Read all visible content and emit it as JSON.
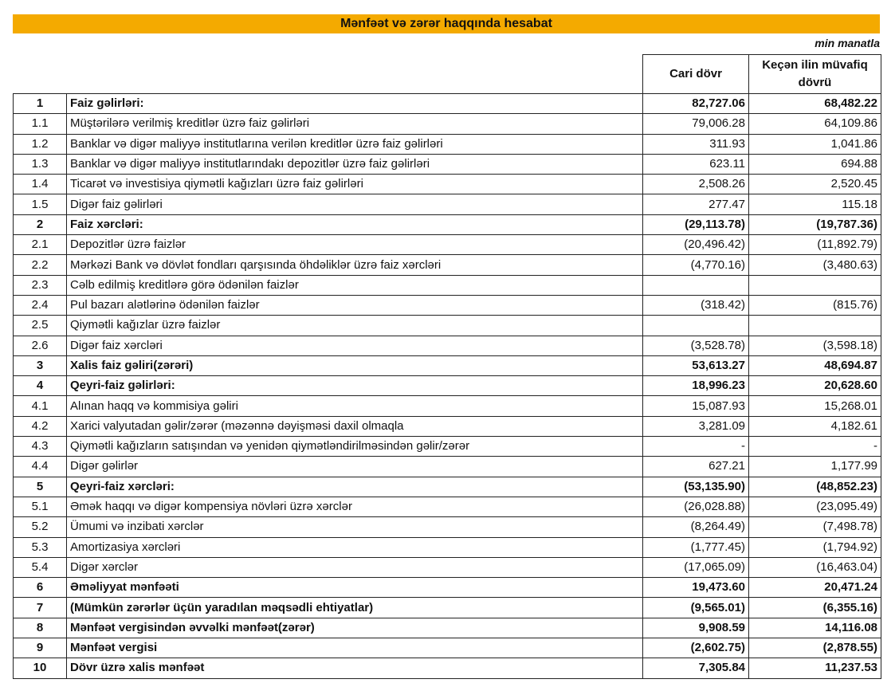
{
  "header": {
    "title": "Mənfəət və zərər haqqında hesabat",
    "unit": "min manatla"
  },
  "table": {
    "columns": [
      "Cari dövr",
      "Keçən ilin müvafiq dövrü"
    ],
    "rows": [
      {
        "num": "1",
        "label": "Faiz gəlirləri:",
        "current": "82,727.06",
        "previous": "68,482.22",
        "bold": true
      },
      {
        "num": "1.1",
        "label": "Müştərilərə verilmiş kreditlər üzrə faiz gəlirləri",
        "current": "79,006.28",
        "previous": "64,109.86",
        "bold": false
      },
      {
        "num": "1.2",
        "label": "Banklar və digər maliyyə institutlarına verilən kreditlər üzrə faiz gəlirləri",
        "current": "311.93",
        "previous": "1,041.86",
        "bold": false
      },
      {
        "num": "1.3",
        "label": "Banklar və digər maliyyə institutlarındakı depozitlər üzrə faiz gəlirləri",
        "current": "623.11",
        "previous": "694.88",
        "bold": false
      },
      {
        "num": "1.4",
        "label": "Ticarət və investisiya qiymətli kağızları üzrə faiz gəlirləri",
        "current": "2,508.26",
        "previous": "2,520.45",
        "bold": false
      },
      {
        "num": "1.5",
        "label": "Digər faiz gəlirləri",
        "current": "277.47",
        "previous": "115.18",
        "bold": false
      },
      {
        "num": "2",
        "label": "Faiz xərcləri:",
        "current": "(29,113.78)",
        "previous": "(19,787.36)",
        "bold": true
      },
      {
        "num": "2.1",
        "label": "Depozitlər üzrə faizlər",
        "current": "(20,496.42)",
        "previous": "(11,892.79)",
        "bold": false
      },
      {
        "num": "2.2",
        "label": "Mərkəzi Bank və dövlət fondları qarşısında öhdəliklər üzrə faiz xərcləri",
        "current": "(4,770.16)",
        "previous": "(3,480.63)",
        "bold": false
      },
      {
        "num": "2.3",
        "label": "Cəlb edilmiş kreditlərə görə ödənilən faizlər",
        "current": null,
        "previous": null,
        "bold": false
      },
      {
        "num": "2.4",
        "label": "Pul bazarı alətlərinə ödənilən faizlər",
        "current": "(318.42)",
        "previous": "(815.76)",
        "bold": false
      },
      {
        "num": "2.5",
        "label": "Qiymətli kağızlar üzrə faizlər",
        "current": null,
        "previous": null,
        "bold": false
      },
      {
        "num": "2.6",
        "label": "Digər faiz xərcləri",
        "current": "(3,528.78)",
        "previous": "(3,598.18)",
        "bold": false
      },
      {
        "num": "3",
        "label": "Xalis faiz gəliri(zərəri)",
        "current": "53,613.27",
        "previous": "48,694.87",
        "bold": true
      },
      {
        "num": "4",
        "label": "Qeyri-faiz gəlirləri:",
        "current": "18,996.23",
        "previous": "20,628.60",
        "bold": true
      },
      {
        "num": "4.1",
        "label": "Alınan haqq və kommisiya gəliri",
        "current": "15,087.93",
        "previous": "15,268.01",
        "bold": false
      },
      {
        "num": "4.2",
        "label": "Xarici valyutadan gəlir/zərər (məzənnə dəyişməsi daxil olmaqla",
        "current": "3,281.09",
        "previous": "4,182.61",
        "bold": false
      },
      {
        "num": "4.3",
        "label": "Qiymətli kağızların satışından və yenidən qiymətləndirilməsindən gəlir/zərər",
        "current": "-",
        "previous": "-",
        "bold": false
      },
      {
        "num": "4.4",
        "label": "Digər gəlirlər",
        "current": "627.21",
        "previous": "1,177.99",
        "bold": false
      },
      {
        "num": "5",
        "label": "Qeyri-faiz xərcləri:",
        "current": "(53,135.90)",
        "previous": "(48,852.23)",
        "bold": true
      },
      {
        "num": "5.1",
        "label": "Əmək haqqı və digər kompensiya növləri üzrə xərclər",
        "current": "(26,028.88)",
        "previous": "(23,095.49)",
        "bold": false
      },
      {
        "num": "5.2",
        "label": "Ümumi və inzibati xərclər",
        "current": "(8,264.49)",
        "previous": "(7,498.78)",
        "bold": false
      },
      {
        "num": "5.3",
        "label": "Amortizasiya xərcləri",
        "current": "(1,777.45)",
        "previous": "(1,794.92)",
        "bold": false
      },
      {
        "num": "5.4",
        "label": "Digər xərclər",
        "current": "(17,065.09)",
        "previous": "(16,463.04)",
        "bold": false
      },
      {
        "num": "6",
        "label": "Əməliyyat mənfəəti",
        "current": "19,473.60",
        "previous": "20,471.24",
        "bold": true
      },
      {
        "num": "7",
        "label": "(Mümkün zərərlər üçün yaradılan məqsədli ehtiyatlar)",
        "current": "(9,565.01)",
        "previous": "(6,355.16)",
        "bold": true
      },
      {
        "num": "8",
        "label": "Mənfəət vergisindən əvvəlki mənfəət(zərər)",
        "current": "9,908.59",
        "previous": "14,116.08",
        "bold": true
      },
      {
        "num": "9",
        "label": "Mənfəət vergisi",
        "current": "(2,602.75)",
        "previous": "(2,878.55)",
        "bold": true
      },
      {
        "num": "10",
        "label": "Dövr üzrə xalis mənfəət",
        "current": "7,305.84",
        "previous": "11,237.53",
        "bold": true
      }
    ]
  }
}
